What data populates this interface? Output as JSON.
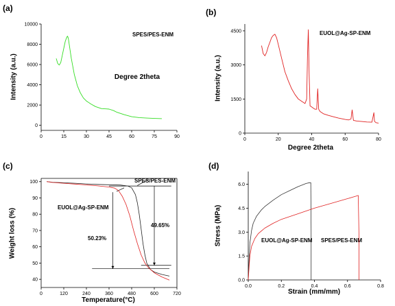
{
  "chart_data": [
    {
      "type": "line",
      "panel_label": "(a)",
      "xlabel": "Degree 2theta",
      "ylabel": "Intensity (a.u.)",
      "xlim": [
        0,
        90
      ],
      "ylim": [
        -500,
        10000
      ],
      "xticks": [
        0,
        15,
        30,
        45,
        60,
        75,
        90
      ],
      "yticks": [
        0,
        2000,
        4000,
        6000,
        8000,
        10000
      ],
      "grid": false,
      "annotations": [
        {
          "text": "SPES/PES-ENM"
        }
      ],
      "series": [
        {
          "color": "#33dd22",
          "x": [
            10,
            11,
            12,
            13,
            14,
            15,
            16,
            17,
            17.5,
            18,
            19,
            20,
            22,
            24,
            26,
            28,
            30,
            33,
            36,
            40,
            43,
            45,
            48,
            50,
            55,
            60,
            65,
            70,
            75,
            80
          ],
          "y": [
            6600,
            6100,
            5950,
            6200,
            6900,
            7600,
            8300,
            8700,
            8800,
            8600,
            7600,
            6600,
            5000,
            3900,
            3200,
            2700,
            2400,
            2100,
            1850,
            1650,
            1620,
            1600,
            1450,
            1300,
            1050,
            850,
            760,
            710,
            680,
            660
          ]
        }
      ]
    },
    {
      "type": "line",
      "panel_label": "(b)",
      "xlabel": "Degree 2theta",
      "ylabel": "Intensity (a.u.)",
      "xlim": [
        0,
        80
      ],
      "ylim": [
        0,
        4800
      ],
      "xticks": [
        0,
        20,
        40,
        60,
        80
      ],
      "yticks": [
        0,
        1500,
        3000,
        4500
      ],
      "grid": false,
      "annotations": [
        {
          "text": "EUOL@Ag-SP-ENM"
        }
      ],
      "series": [
        {
          "color": "#e02020",
          "x": [
            10,
            11,
            12,
            13,
            14,
            15,
            16,
            17,
            18,
            19,
            20,
            22,
            24,
            26,
            28,
            30,
            32,
            34,
            36,
            37,
            37.5,
            38,
            38.5,
            39,
            40,
            41,
            42,
            43,
            43.6,
            44.2,
            45,
            47,
            50,
            53,
            56,
            60,
            62,
            63.5,
            64.2,
            65,
            67,
            70,
            73,
            76,
            77.2,
            77.6,
            78.5,
            80
          ],
          "y": [
            3850,
            3500,
            3400,
            3550,
            3800,
            4000,
            4200,
            4300,
            4350,
            4200,
            3900,
            3300,
            2700,
            2300,
            1950,
            1700,
            1500,
            1400,
            1300,
            1500,
            3400,
            4550,
            2600,
            1200,
            1150,
            1100,
            1050,
            1050,
            1950,
            1050,
            950,
            850,
            780,
            720,
            660,
            600,
            580,
            620,
            1020,
            560,
            530,
            510,
            490,
            480,
            900,
            520,
            460,
            440
          ]
        }
      ]
    },
    {
      "type": "line",
      "panel_label": "(c)",
      "xlabel": "Temperature(°C)",
      "ylabel": "Weight loss (%)",
      "xlim": [
        0,
        720
      ],
      "ylim": [
        35,
        102
      ],
      "xticks": [
        0,
        120,
        240,
        360,
        480,
        600,
        720
      ],
      "yticks": [
        40,
        50,
        60,
        70,
        80,
        90,
        100
      ],
      "grid": false,
      "annotations": [
        {
          "text": "SPES/PES-ENM"
        },
        {
          "text": "EUOL@Ag-SP-ENM"
        },
        {
          "text": "50.23%"
        },
        {
          "text": "49.65%"
        }
      ],
      "series": [
        {
          "color": "#222222",
          "x": [
            30,
            60,
            120,
            180,
            240,
            300,
            360,
            420,
            460,
            480,
            500,
            510,
            520,
            530,
            540,
            550,
            560,
            580,
            600,
            640,
            680
          ],
          "y": [
            100,
            99.6,
            99.3,
            99,
            98.6,
            98.3,
            98.1,
            97.9,
            97.3,
            96.2,
            92,
            87,
            80,
            71,
            62,
            55,
            50,
            46,
            44.5,
            43,
            42
          ]
        },
        {
          "color": "#e02020",
          "x": [
            30,
            60,
            120,
            180,
            240,
            300,
            360,
            390,
            410,
            430,
            450,
            470,
            490,
            510,
            530,
            550,
            570,
            600,
            640,
            680
          ],
          "y": [
            100,
            99.5,
            99,
            98.5,
            98,
            97.4,
            96.7,
            96,
            94.5,
            91,
            86,
            79,
            70,
            62,
            55,
            50,
            47,
            44,
            41.5,
            39.5
          ]
        }
      ]
    },
    {
      "type": "line",
      "panel_label": "(d)",
      "xlabel": "Strain (mm/mm)",
      "ylabel": "Stress (MPa)",
      "xlim": [
        0,
        0.8
      ],
      "ylim": [
        0,
        6.8
      ],
      "xticks": [
        0.0,
        0.2,
        0.4,
        0.6,
        0.8
      ],
      "yticks": [
        0.0,
        1.5,
        3.0,
        4.5,
        6.0
      ],
      "grid": false,
      "annotations": [
        {
          "text": "EUOL@Ag-SP-ENM",
          "color": "#222222"
        },
        {
          "text": "SPES/PES-ENM",
          "color": "#e02020"
        }
      ],
      "series": [
        {
          "color": "#333333",
          "x": [
            0.0,
            0.005,
            0.01,
            0.02,
            0.03,
            0.05,
            0.08,
            0.1,
            0.15,
            0.2,
            0.25,
            0.3,
            0.35,
            0.37,
            0.378,
            0.38,
            0.38
          ],
          "y": [
            0.0,
            1.2,
            2.3,
            3.1,
            3.55,
            4.0,
            4.4,
            4.6,
            5.0,
            5.35,
            5.6,
            5.85,
            6.05,
            6.1,
            6.1,
            3.0,
            0.0
          ]
        },
        {
          "color": "#e02020",
          "x": [
            0.0,
            0.005,
            0.01,
            0.02,
            0.04,
            0.06,
            0.1,
            0.15,
            0.2,
            0.3,
            0.4,
            0.5,
            0.6,
            0.65,
            0.665,
            0.67,
            0.67
          ],
          "y": [
            0.0,
            0.8,
            1.5,
            2.1,
            2.6,
            2.9,
            3.25,
            3.55,
            3.8,
            4.15,
            4.5,
            4.8,
            5.1,
            5.25,
            5.3,
            2.5,
            0.0
          ]
        }
      ]
    }
  ]
}
